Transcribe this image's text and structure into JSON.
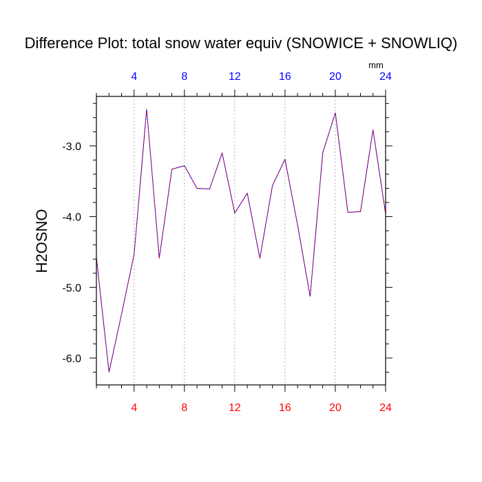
{
  "chart_data": {
    "type": "line",
    "title": "Difference Plot: total snow water equiv (SNOWICE + SNOWLIQ)",
    "ylabel": "H2OSNO",
    "top_axis_unit": "mm",
    "xlim": [
      1,
      24
    ],
    "ylim": [
      -6.38,
      -2.3
    ],
    "x_ticks": [
      4,
      8,
      12,
      16,
      20,
      24
    ],
    "y_ticks": [
      -3.0,
      -4.0,
      -5.0,
      -6.0
    ],
    "y_tick_labels": [
      "-3.0",
      "-4.0",
      "-5.0",
      "-6.0"
    ],
    "y_minor_step": 0.2,
    "x_minor_step": 1,
    "grid": "vertical-dotted",
    "colors": {
      "bottom_ticks": "#ff0000",
      "top_ticks": "#0000ff",
      "left_ticks": "#000000",
      "line_solid": "#0000ff",
      "line_dash": "#ff0000"
    },
    "series": [
      {
        "x": [
          1,
          2,
          3,
          4,
          5,
          6,
          7,
          8,
          9,
          10,
          11,
          12,
          13,
          14,
          15,
          16,
          17,
          18,
          19,
          20,
          21,
          22,
          23,
          24
        ],
        "values": [
          -4.58,
          -6.2,
          -5.38,
          -4.53,
          -2.48,
          -4.59,
          -3.33,
          -3.28,
          -3.6,
          -3.61,
          -3.1,
          -3.95,
          -3.67,
          -4.59,
          -3.56,
          -3.19,
          -4.12,
          -5.13,
          -3.1,
          -2.53,
          -3.94,
          -3.93,
          -2.77,
          -3.96
        ]
      }
    ]
  }
}
